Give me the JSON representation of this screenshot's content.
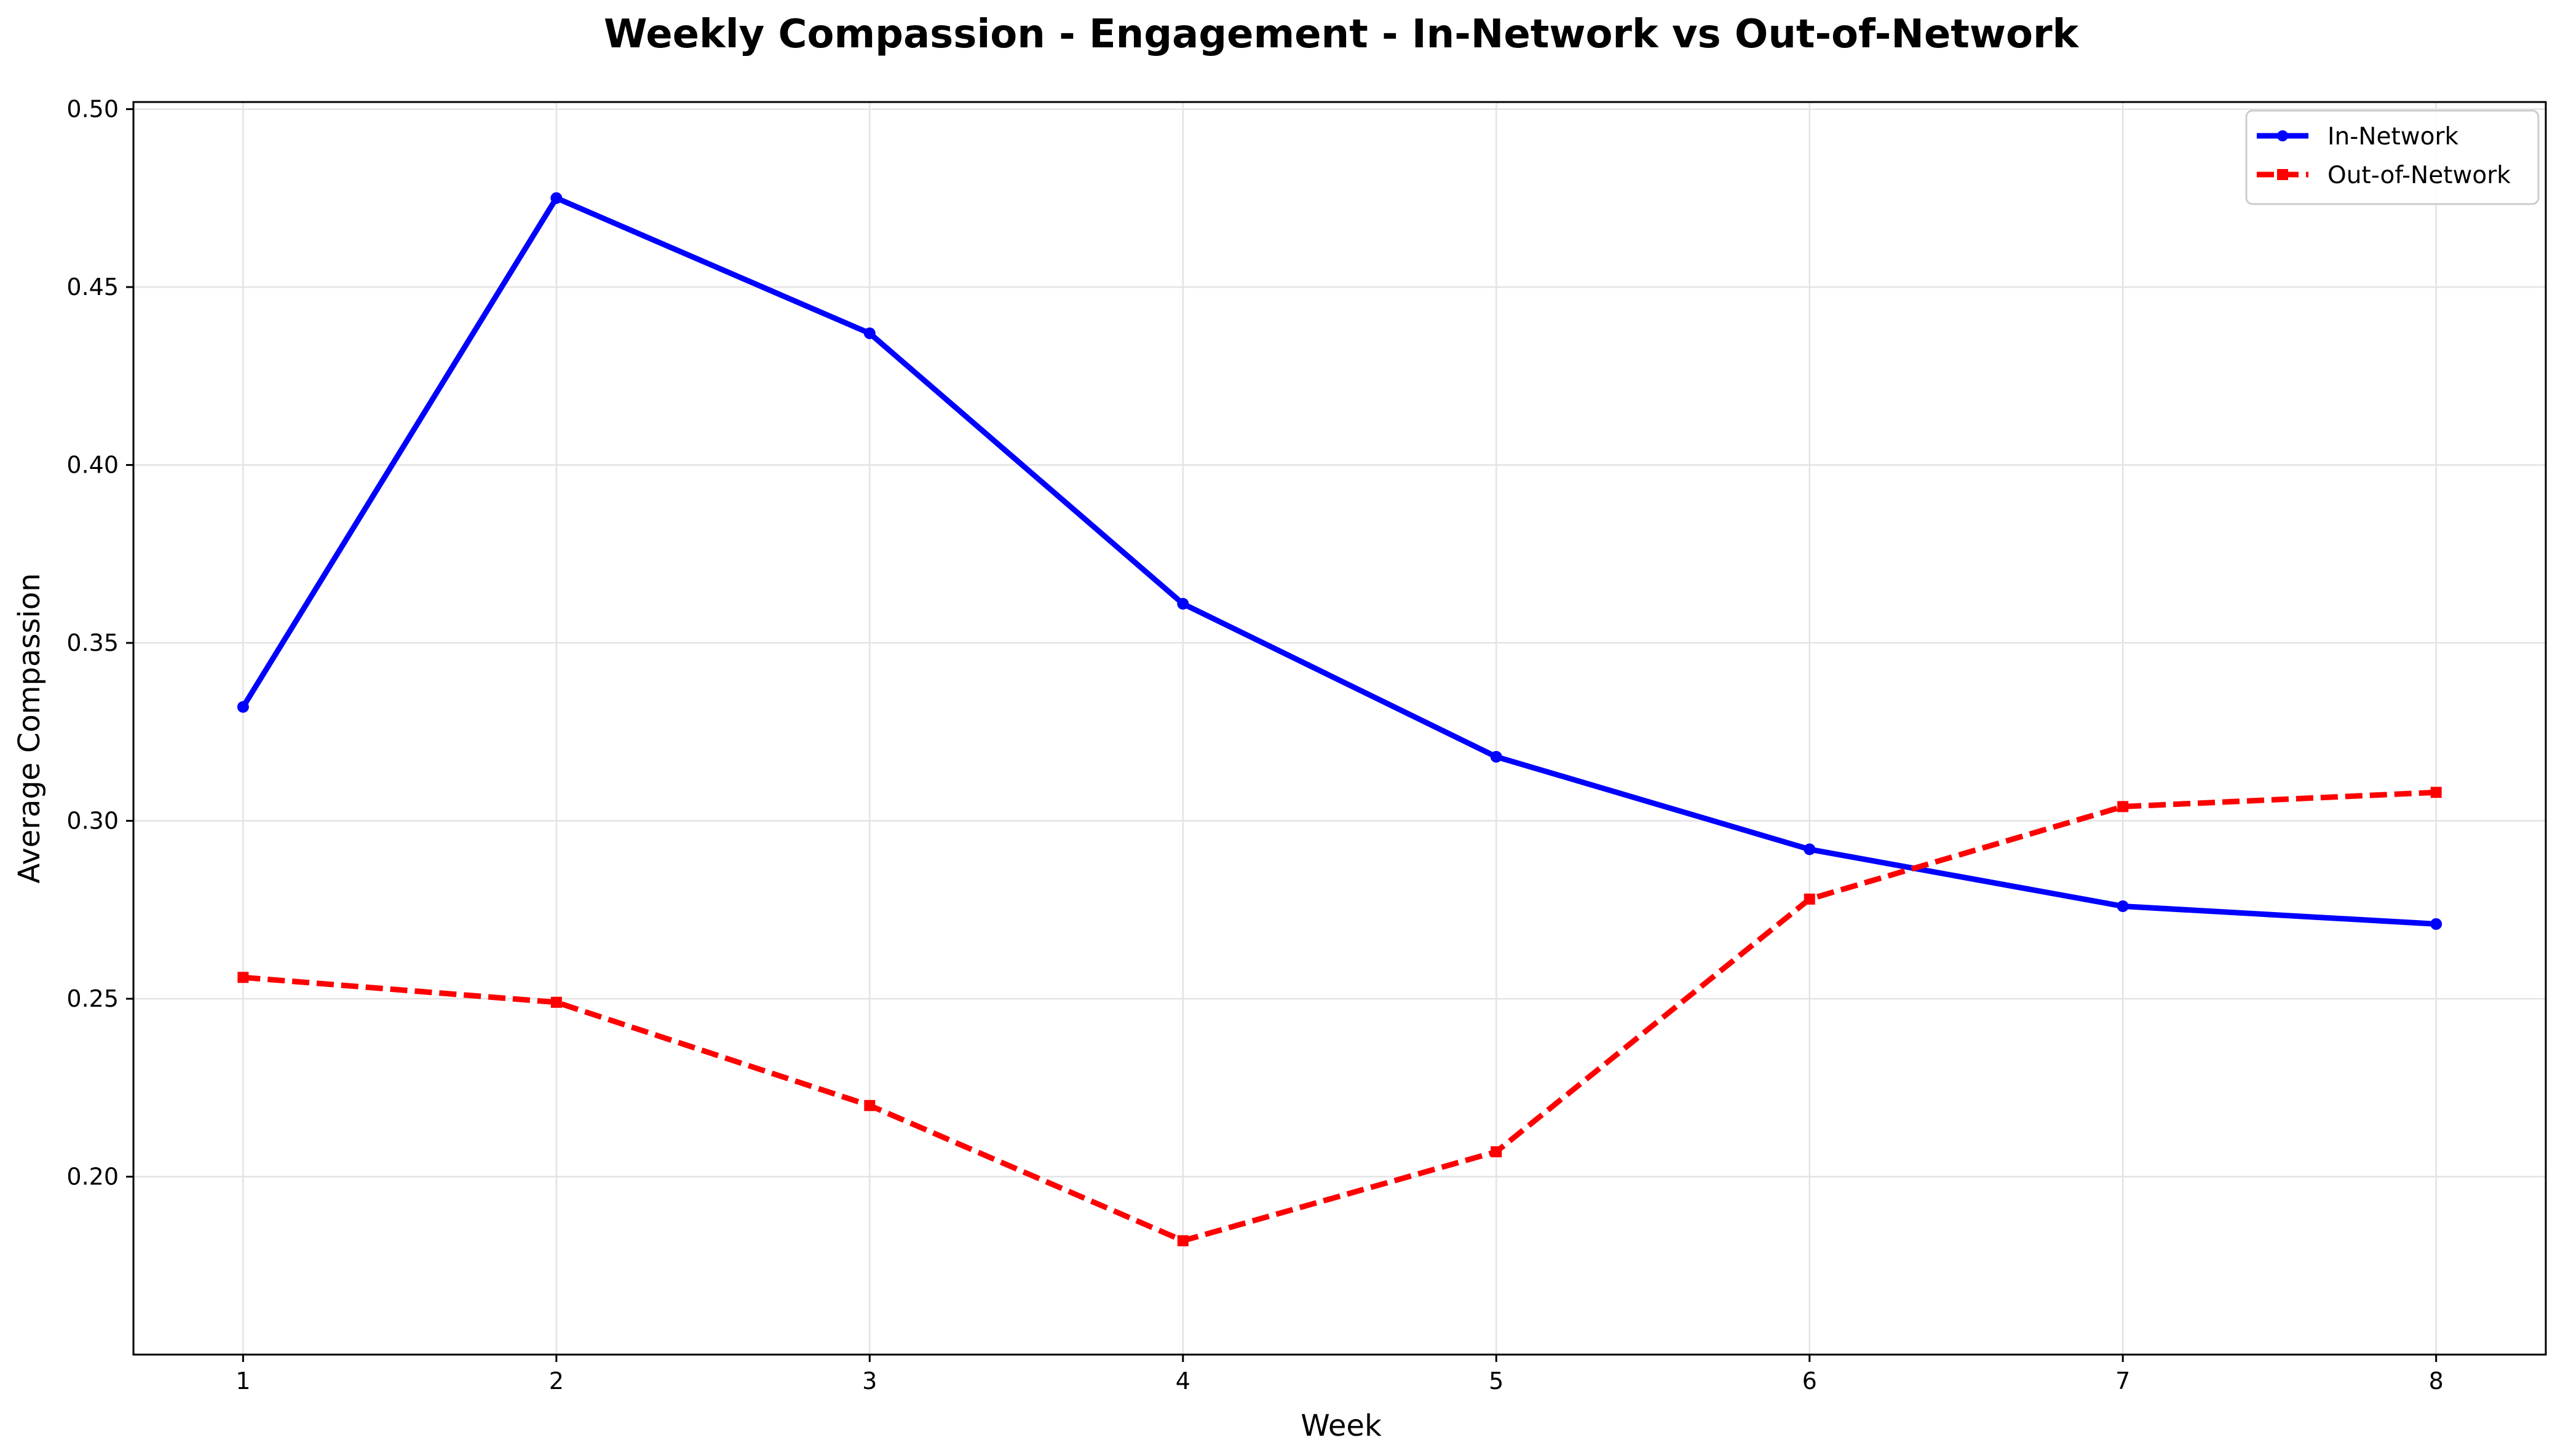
{
  "chart_data": {
    "type": "line",
    "title": "Weekly Compassion - Engagement - In-Network vs Out-of-Network",
    "xlabel": "Week",
    "ylabel": "Average Compassion",
    "x": [
      1,
      2,
      3,
      4,
      5,
      6,
      7,
      8
    ],
    "xticks": [
      "1",
      "2",
      "3",
      "4",
      "5",
      "6",
      "7",
      "8"
    ],
    "yticks": [
      "0.20",
      "0.25",
      "0.30",
      "0.35",
      "0.40",
      "0.45",
      "0.50"
    ],
    "xlim": [
      0.65,
      8.35
    ],
    "ylim": [
      0.15,
      0.502
    ],
    "grid": true,
    "legend_position": "top-right",
    "series": [
      {
        "name": "In-Network",
        "color": "#0000ff",
        "linestyle": "solid",
        "marker": "circle",
        "values": [
          0.332,
          0.475,
          0.437,
          0.361,
          0.318,
          0.292,
          0.276,
          0.271
        ]
      },
      {
        "name": "Out-of-Network",
        "color": "#ff0000",
        "linestyle": "dashed",
        "marker": "square",
        "values": [
          0.256,
          0.249,
          0.22,
          0.182,
          0.207,
          0.278,
          0.304,
          0.308
        ]
      }
    ]
  }
}
